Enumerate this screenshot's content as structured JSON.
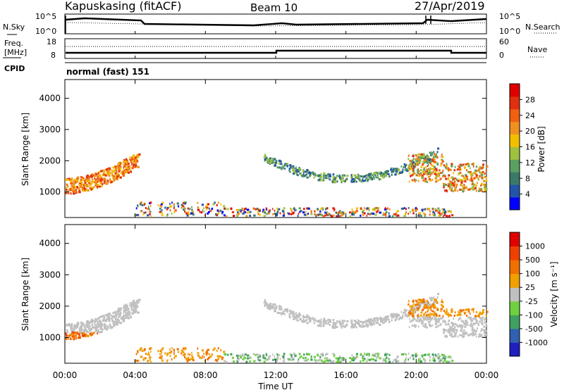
{
  "header": {
    "station": "Kapuskasing (fitACF)",
    "beam": "Beam 10",
    "date": "27/Apr/2019"
  },
  "top_panels": {
    "nsky_label": "N.Sky",
    "nsky_ticks": [
      "10^5",
      "10^0"
    ],
    "nsearch_label": "N.Search",
    "nsearch_ticks": [
      "10^5",
      "10^0"
    ],
    "freq_label_1": "Freq.",
    "freq_label_2": "[MHz]",
    "freq_ticks": [
      "18",
      "8"
    ],
    "nave_label": "Nave",
    "nave_ticks": [
      "60",
      "0"
    ],
    "cpid_label": "CPID",
    "cpid_value": "normal (fast) 151"
  },
  "chart_data": [
    {
      "type": "heatmap",
      "quantity": "Power",
      "ylabel": "Slant Range [km]",
      "colorbar_label": "Power [dB]",
      "colorbar_ticks": [
        "4",
        "8",
        "12",
        "16",
        "20",
        "24",
        "28"
      ],
      "colorbar_range": [
        0,
        30
      ],
      "yticks": [
        "1000",
        "2000",
        "3000",
        "4000"
      ],
      "ylim": [
        180,
        4600
      ],
      "xlim": [
        0,
        24
      ],
      "regions": [
        {
          "t": [
            0.0,
            4.2
          ],
          "r": [
            600,
            2300
          ],
          "note": "arc near 1400 km"
        },
        {
          "t": [
            3.8,
            22.0
          ],
          "r": [
            250,
            700
          ]
        },
        {
          "t": [
            11.3,
            21.2
          ],
          "r": [
            1300,
            2800
          ]
        },
        {
          "t": [
            19.5,
            24.0
          ],
          "r": [
            900,
            2400
          ]
        }
      ]
    },
    {
      "type": "heatmap",
      "quantity": "Velocity",
      "ylabel": "Slant Range [km]",
      "colorbar_label": "Velocity [m s⁻¹]",
      "colorbar_ticks": [
        "1000",
        "500",
        "100",
        "25",
        "-25",
        "-100",
        "-500",
        "-1000"
      ],
      "yticks": [
        "1000",
        "2000",
        "3000",
        "4000"
      ],
      "ylim": [
        180,
        4600
      ],
      "xlim": [
        0,
        24
      ],
      "xticks": [
        "00:00",
        "04:00",
        "08:00",
        "12:00",
        "16:00",
        "20:00",
        "00:00"
      ],
      "xlabel": "Time UT"
    }
  ],
  "colors": {
    "power_scale": [
      "#0000ff",
      "#2255aa",
      "#3a7a6a",
      "#5aa060",
      "#a0c040",
      "#f0c000",
      "#f09020",
      "#f06010",
      "#e03010",
      "#e00000"
    ],
    "velocity_scale": [
      "#2020c0",
      "#3060b0",
      "#40a060",
      "#70d040",
      "#c0c0c0",
      "#f0a000",
      "#f07000",
      "#f04000",
      "#e00000"
    ]
  }
}
